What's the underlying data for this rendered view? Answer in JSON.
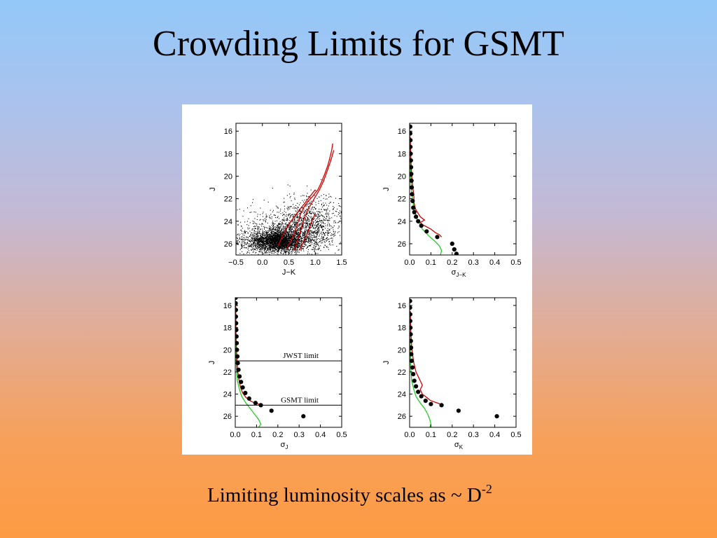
{
  "slide": {
    "title": "Crowding Limits for GSMT",
    "caption": {
      "text": "Limiting luminosity scales as ~ D",
      "exponent": "-2"
    }
  },
  "colors": {
    "model": "#d00000",
    "reference": "#22cc22",
    "points": "#000000",
    "limit": "#000000"
  },
  "chart_data": [
    {
      "type": "scatter",
      "panel": "top-left",
      "xlabel": "J−K",
      "ylabel": "J",
      "xlim": [
        -0.5,
        1.5
      ],
      "ylim": [
        15.3,
        27.0
      ],
      "y_inverted": true,
      "x_ticks": [
        "−0.5",
        "0.0",
        "0.5",
        "1.0",
        "1.5"
      ],
      "y_ticks": [
        "16",
        "18",
        "20",
        "22",
        "24",
        "26"
      ],
      "series": [
        {
          "kind": "cloud",
          "color": "#000000",
          "clumps": [
            {
              "x": 0.3,
              "y": 25.7,
              "sx": 0.22,
              "sy": 0.45,
              "n": 1800
            },
            {
              "x": 0.15,
              "y": 25.9,
              "sx": 0.45,
              "sy": 0.5,
              "n": 900
            },
            {
              "x": 0.7,
              "y": 25.0,
              "sx": 0.35,
              "sy": 0.8,
              "n": 700
            },
            {
              "x": 0.9,
              "y": 23.5,
              "sx": 0.3,
              "sy": 1.0,
              "n": 500
            },
            {
              "x": 0.5,
              "y": 24.6,
              "sx": 0.55,
              "sy": 0.9,
              "n": 500
            }
          ]
        },
        {
          "kind": "line",
          "color": "#d00000",
          "x": [
            0.45,
            0.55,
            0.62,
            0.68,
            0.72,
            0.78,
            0.85,
            0.95,
            1.05,
            1.12,
            1.18,
            1.24,
            1.28,
            1.31,
            1.33
          ],
          "y": [
            26.5,
            25.6,
            24.9,
            24.0,
            23.4,
            22.8,
            22.3,
            21.8,
            21.2,
            20.5,
            19.8,
            19.0,
            18.3,
            17.7,
            17.1
          ]
        },
        {
          "kind": "line",
          "color": "#d00000",
          "x": [
            0.6,
            0.68,
            0.74,
            0.8,
            0.88,
            0.98,
            1.08,
            1.16,
            1.22,
            1.28,
            1.32,
            1.35
          ],
          "y": [
            26.6,
            25.5,
            24.5,
            23.6,
            22.8,
            22.0,
            21.2,
            20.4,
            19.6,
            18.8,
            18.2,
            17.7
          ]
        },
        {
          "kind": "line",
          "color": "#d00000",
          "x": [
            0.3,
            0.38,
            0.46,
            0.54,
            0.62,
            0.7,
            0.8,
            0.9,
            1.0
          ],
          "y": [
            26.2,
            25.3,
            24.6,
            24.0,
            23.5,
            23.0,
            22.4,
            21.8,
            21.2
          ]
        },
        {
          "kind": "line",
          "color": "#d00000",
          "x": [
            0.7,
            0.78,
            0.86,
            0.92,
            1.0
          ],
          "y": [
            26.6,
            25.8,
            25.0,
            24.2,
            23.3
          ]
        }
      ]
    },
    {
      "type": "scatter",
      "panel": "top-right",
      "xlabel": "σ",
      "xlabel_sub": "J−K",
      "ylabel": "J",
      "xlim": [
        0,
        0.5
      ],
      "ylim": [
        15.3,
        27.0
      ],
      "y_inverted": true,
      "x_ticks": [
        "0.0",
        "0.1",
        "0.2",
        "0.3",
        "0.4",
        "0.5"
      ],
      "y_ticks": [
        "16",
        "18",
        "20",
        "22",
        "24",
        "26"
      ],
      "series": [
        {
          "kind": "line",
          "color": "#22cc22",
          "x": [
            0.0,
            0.002,
            0.005,
            0.01,
            0.02,
            0.035,
            0.06,
            0.09,
            0.12,
            0.14,
            0.15,
            0.145
          ],
          "y": [
            15.3,
            18.0,
            20.0,
            21.5,
            22.8,
            23.8,
            24.7,
            25.3,
            25.8,
            26.2,
            26.6,
            27.0
          ]
        },
        {
          "kind": "line",
          "color": "#d00000",
          "x": [
            0.003,
            0.006,
            0.01,
            0.015,
            0.02,
            0.02,
            0.025,
            0.03,
            0.04,
            0.05,
            0.07,
            0.05,
            0.06,
            0.08,
            0.1,
            0.12,
            0.14,
            0.15
          ],
          "y": [
            16.5,
            18.5,
            20.0,
            21.0,
            21.8,
            22.3,
            22.7,
            23.0,
            23.3,
            23.6,
            23.9,
            24.1,
            24.3,
            24.5,
            24.7,
            25.0,
            25.2,
            25.4
          ]
        },
        {
          "kind": "points",
          "color": "#000000",
          "x": [
            0.003,
            0.003,
            0.004,
            0.004,
            0.005,
            0.006,
            0.007,
            0.008,
            0.009,
            0.01,
            0.012,
            0.014,
            0.017,
            0.022,
            0.03,
            0.04,
            0.055,
            0.08,
            0.13,
            0.2,
            0.21,
            0.22
          ],
          "y": [
            15.6,
            16.2,
            16.8,
            17.4,
            18.0,
            18.6,
            19.2,
            19.8,
            20.4,
            21.0,
            21.6,
            22.2,
            22.8,
            23.2,
            23.6,
            24.0,
            24.4,
            24.9,
            25.4,
            26.0,
            26.5,
            26.9
          ]
        }
      ]
    },
    {
      "type": "scatter",
      "panel": "bottom-left",
      "xlabel": "σ",
      "xlabel_sub": "J",
      "ylabel": "J",
      "xlim": [
        0,
        0.5
      ],
      "ylim": [
        15.3,
        27.0
      ],
      "y_inverted": true,
      "x_ticks": [
        "0.0",
        "0.1",
        "0.2",
        "0.3",
        "0.4",
        "0.5"
      ],
      "y_ticks": [
        "16",
        "18",
        "20",
        "22",
        "24",
        "26"
      ],
      "limits": [
        {
          "label": "JWST limit",
          "y": 21.0
        },
        {
          "label": "GSMT limit",
          "y": 25.0
        }
      ],
      "series": [
        {
          "kind": "line",
          "color": "#22cc22",
          "x": [
            0.0,
            0.002,
            0.005,
            0.01,
            0.02,
            0.03,
            0.05,
            0.07,
            0.09,
            0.11,
            0.12,
            0.11
          ],
          "y": [
            15.3,
            19.0,
            21.5,
            22.8,
            23.6,
            24.2,
            24.8,
            25.3,
            25.8,
            26.3,
            26.7,
            27.0
          ]
        },
        {
          "kind": "line",
          "color": "#d00000",
          "x": [
            0.002,
            0.004,
            0.008,
            0.012,
            0.018,
            0.025,
            0.035,
            0.05,
            0.07,
            0.09,
            0.11,
            0.13
          ],
          "y": [
            16.0,
            19.0,
            21.0,
            22.0,
            22.8,
            23.4,
            23.9,
            24.3,
            24.6,
            24.8,
            24.9,
            25.0
          ]
        },
        {
          "kind": "points",
          "color": "#000000",
          "x": [
            0.002,
            0.002,
            0.003,
            0.003,
            0.004,
            0.005,
            0.006,
            0.007,
            0.008,
            0.01,
            0.012,
            0.015,
            0.02,
            0.027,
            0.035,
            0.047,
            0.065,
            0.095,
            0.12,
            0.17,
            0.32
          ],
          "y": [
            15.3,
            15.8,
            16.4,
            17.0,
            17.6,
            18.2,
            18.8,
            19.4,
            20.0,
            20.6,
            21.2,
            21.8,
            22.4,
            22.9,
            23.4,
            23.9,
            24.4,
            24.8,
            25.0,
            25.5,
            26.0
          ]
        }
      ]
    },
    {
      "type": "scatter",
      "panel": "bottom-right",
      "xlabel": "σ",
      "xlabel_sub": "K",
      "ylabel": "J",
      "xlim": [
        0,
        0.5
      ],
      "ylim": [
        15.3,
        27.0
      ],
      "y_inverted": true,
      "x_ticks": [
        "0.0",
        "0.1",
        "0.2",
        "0.3",
        "0.4",
        "0.5"
      ],
      "y_ticks": [
        "16",
        "18",
        "20",
        "22",
        "24",
        "26"
      ],
      "series": [
        {
          "kind": "line",
          "color": "#22cc22",
          "x": [
            0.0,
            0.002,
            0.005,
            0.01,
            0.02,
            0.03,
            0.05,
            0.07,
            0.085,
            0.095,
            0.1,
            0.095
          ],
          "y": [
            15.3,
            19.0,
            21.5,
            22.8,
            23.6,
            24.2,
            24.8,
            25.3,
            25.8,
            26.3,
            26.7,
            27.0
          ]
        },
        {
          "kind": "line",
          "color": "#d00000",
          "x": [
            0.003,
            0.006,
            0.01,
            0.015,
            0.02,
            0.025,
            0.03,
            0.04,
            0.05,
            0.06,
            0.05,
            0.06,
            0.08,
            0.1,
            0.13,
            0.16
          ],
          "y": [
            16.5,
            18.5,
            19.8,
            20.6,
            21.2,
            21.6,
            22.0,
            22.4,
            22.8,
            23.2,
            23.6,
            24.0,
            24.3,
            24.6,
            24.8,
            25.0
          ]
        },
        {
          "kind": "points",
          "color": "#000000",
          "x": [
            0.002,
            0.002,
            0.003,
            0.003,
            0.004,
            0.005,
            0.006,
            0.007,
            0.008,
            0.01,
            0.013,
            0.017,
            0.022,
            0.03,
            0.04,
            0.055,
            0.075,
            0.1,
            0.15,
            0.23,
            0.41
          ],
          "y": [
            15.6,
            16.2,
            16.8,
            17.4,
            18.0,
            18.6,
            19.2,
            19.8,
            20.4,
            21.0,
            21.6,
            22.2,
            22.8,
            23.3,
            23.8,
            24.2,
            24.6,
            24.9,
            25.0,
            25.5,
            26.0
          ]
        }
      ]
    }
  ]
}
